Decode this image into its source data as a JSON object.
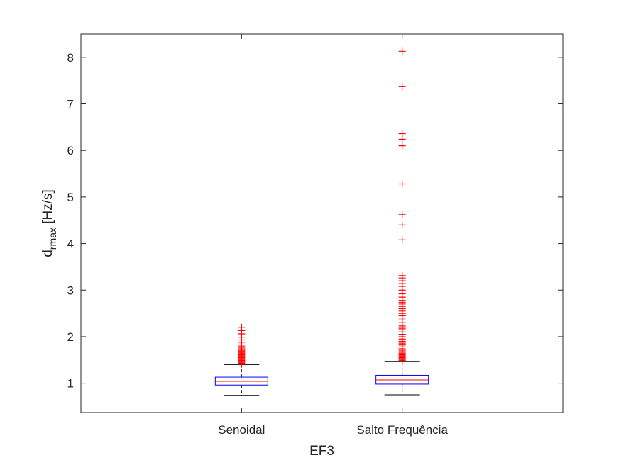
{
  "chart_data": {
    "type": "boxplot",
    "title": "",
    "xlabel": "EF3",
    "ylabel_main": "d",
    "ylabel_sub": "rmax",
    "ylabel_unit": " [Hz/s]",
    "categories": [
      "Senoidal",
      "Salto Frequência"
    ],
    "ylim": [
      0.37,
      8.5
    ],
    "yticks": [
      1,
      2,
      3,
      4,
      5,
      6,
      7,
      8
    ],
    "grid": false,
    "colors": {
      "box": "#0000ff",
      "median": "#ff0000",
      "whisker": "#000000",
      "outlier": "#ff0000"
    },
    "boxes": [
      {
        "category": "Senoidal",
        "whisker_low": 0.74,
        "q1": 0.96,
        "median": 1.04,
        "q3": 1.13,
        "whisker_high": 1.4,
        "outliers": [
          1.41,
          1.43,
          1.45,
          1.47,
          1.49,
          1.51,
          1.53,
          1.55,
          1.57,
          1.59,
          1.61,
          1.63,
          1.65,
          1.67,
          1.69,
          1.71,
          1.74,
          1.77,
          1.8,
          1.84,
          1.88,
          1.93,
          1.99,
          2.06,
          2.13,
          2.2
        ]
      },
      {
        "category": "Salto Frequência",
        "whisker_low": 0.75,
        "q1": 0.98,
        "median": 1.07,
        "q3": 1.17,
        "whisker_high": 1.47,
        "outliers": [
          1.49,
          1.51,
          1.53,
          1.55,
          1.57,
          1.59,
          1.61,
          1.63,
          1.65,
          1.68,
          1.71,
          1.74,
          1.78,
          1.82,
          1.86,
          1.9,
          1.95,
          2.0,
          2.05,
          2.1,
          2.15,
          2.18,
          2.21,
          2.24,
          2.3,
          2.36,
          2.4,
          2.45,
          2.5,
          2.55,
          2.6,
          2.65,
          2.7,
          2.74,
          2.78,
          2.85,
          2.92,
          3.0,
          3.08,
          3.14,
          3.2,
          3.26,
          3.31,
          4.08,
          4.4,
          4.62,
          5.28,
          6.1,
          6.24,
          6.36,
          7.37,
          8.13
        ]
      }
    ]
  }
}
